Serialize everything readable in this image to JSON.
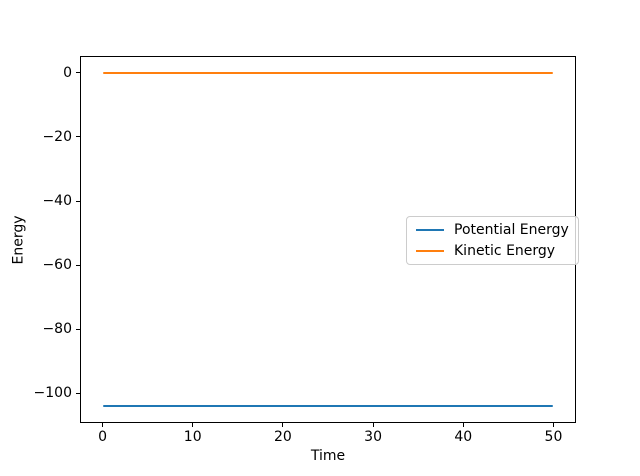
{
  "figure": {
    "background": "#ffffff",
    "text_color": "#000000"
  },
  "chart_data": {
    "type": "line",
    "title": "",
    "xlabel": "Time",
    "ylabel": "Energy",
    "x": [
      0,
      50
    ],
    "series": [
      {
        "name": "Potential Energy",
        "color": "#1f77b4",
        "values": [
          -104,
          -104
        ]
      },
      {
        "name": "Kinetic Energy",
        "color": "#ff7f0e",
        "values": [
          0,
          0
        ]
      }
    ],
    "xticks": [
      0,
      10,
      20,
      30,
      40,
      50
    ],
    "yticks": [
      0,
      -20,
      -40,
      -60,
      -80,
      -100
    ],
    "xlim": [
      -2.5,
      52.5
    ],
    "ylim": [
      -109.2,
      5.2
    ],
    "grid": false,
    "legend": {
      "entries": [
        "Potential Energy",
        "Kinetic Energy"
      ],
      "position": "center-right",
      "border_color": "#cccccc"
    }
  }
}
